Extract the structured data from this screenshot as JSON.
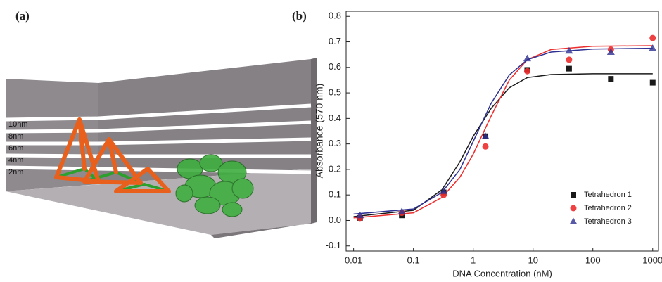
{
  "panel_labels": [
    "(a)",
    "(b)"
  ],
  "panel_a": {
    "labels": [
      "10nm",
      "8nm",
      "6nm",
      "4nm",
      "2nm"
    ]
  },
  "chart_data": {
    "type": "scatter",
    "x_label": "DNA Concentration (nM)",
    "y_label": "Absorbance (570 nm)",
    "x_scale": "log",
    "x": [
      0.0128,
      0.064,
      0.32,
      1.6,
      8,
      40,
      200,
      1000
    ],
    "series": [
      {
        "name": "Tetrahedron 1",
        "color": "#1a1a1a",
        "marker": "square",
        "values": [
          0.01,
          0.02,
          0.11,
          0.33,
          0.59,
          0.595,
          0.555,
          0.54
        ],
        "fit": {
          "x": [
            0.01,
            0.1,
            0.3,
            0.6,
            1,
            2,
            4,
            8,
            20,
            100,
            1000
          ],
          "values": [
            0.015,
            0.04,
            0.12,
            0.23,
            0.33,
            0.44,
            0.52,
            0.56,
            0.572,
            0.575,
            0.575
          ]
        }
      },
      {
        "name": "Tetrahedron 2",
        "color": "#ec2d2d",
        "marker": "circle",
        "values": [
          0.01,
          0.03,
          0.1,
          0.29,
          0.585,
          0.63,
          0.67,
          0.715
        ],
        "fit": {
          "x": [
            0.01,
            0.1,
            0.3,
            0.6,
            1,
            2,
            4,
            8,
            20,
            100,
            1000
          ],
          "values": [
            0.01,
            0.03,
            0.09,
            0.17,
            0.26,
            0.41,
            0.55,
            0.63,
            0.67,
            0.683,
            0.685
          ]
        }
      },
      {
        "name": "Tetrahedron 3",
        "color": "#2e3192",
        "marker": "triangle",
        "values": [
          0.02,
          0.035,
          0.115,
          0.33,
          0.635,
          0.665,
          0.66,
          0.675
        ],
        "fit": {
          "x": [
            0.01,
            0.1,
            0.3,
            0.6,
            1,
            2,
            4,
            8,
            20,
            100,
            1000
          ],
          "values": [
            0.025,
            0.045,
            0.11,
            0.2,
            0.31,
            0.46,
            0.57,
            0.63,
            0.66,
            0.672,
            0.675
          ]
        }
      }
    ],
    "xlim": [
      0.0075,
      1250
    ],
    "xticks": [
      0.01,
      0.1,
      1,
      10,
      100,
      1000
    ],
    "ylim": [
      -0.12,
      0.82
    ],
    "yticks": [
      -0.1,
      {
        "value": 0,
        "label": "0.0"
      },
      0.1,
      0.2,
      0.3,
      0.4,
      0.5,
      0.6,
      0.7,
      0.8
    ],
    "legend": "lower right"
  }
}
